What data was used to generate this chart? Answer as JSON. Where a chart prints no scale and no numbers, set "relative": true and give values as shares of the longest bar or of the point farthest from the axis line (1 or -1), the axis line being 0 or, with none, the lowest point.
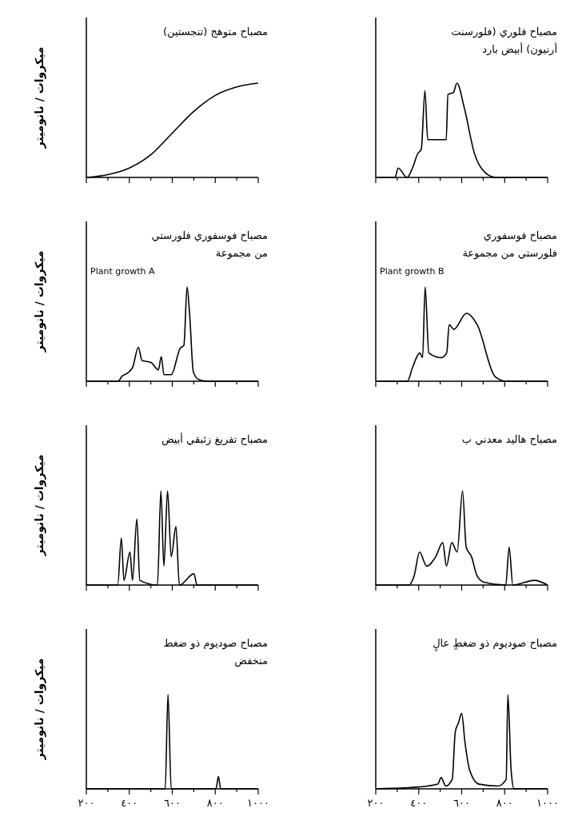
{
  "chart_data": [
    {
      "type": "line",
      "title": "مصباح متوهج (تنجستين)",
      "ylabel": "ميكروات / نانوميتر",
      "relative": true,
      "color": "#000000",
      "xlim": [
        200,
        1000
      ],
      "xticks": [
        200,
        {
          "value": 300,
          "label": null
        },
        400,
        {
          "value": 500,
          "label": null
        },
        600,
        {
          "value": 700,
          "label": null
        },
        800,
        {
          "value": 900,
          "label": null
        },
        1000
      ],
      "tick_labels": false,
      "x": [
        200,
        300,
        400,
        500,
        600,
        700,
        800,
        900,
        1000
      ],
      "values": [
        0,
        0.03,
        0.1,
        0.24,
        0.47,
        0.7,
        0.87,
        0.96,
        1
      ]
    },
    {
      "type": "line",
      "title": "مصباح فلوري (فلورسنت\nأرنيون) أبيض بارد",
      "relative": true,
      "color": "#000000",
      "xlim": [
        200,
        1000
      ],
      "xticks": [
        200,
        {
          "value": 300,
          "label": null
        },
        400,
        {
          "value": 500,
          "label": null
        },
        600,
        {
          "value": 700,
          "label": null
        },
        800,
        {
          "value": 900,
          "label": null
        },
        1000
      ],
      "tick_labels": false,
      "x": [
        200,
        290,
        304,
        346,
        371,
        395,
        412,
        429,
        442,
        528,
        536,
        561,
        578,
        611,
        660,
        710,
        760,
        1000
      ],
      "values": [
        0,
        0,
        0.1,
        0,
        0.1,
        0.25,
        0.3,
        0.92,
        0.4,
        0.4,
        0.88,
        0.9,
        1,
        0.75,
        0.25,
        0.05,
        0,
        0
      ]
    },
    {
      "type": "line",
      "title": "مصباح فوسفوري فلورستي\nمن مجموعة",
      "annotations": [
        "Plant growth A"
      ],
      "ylabel": "ميكروات / نانوميتر",
      "relative": true,
      "color": "#000000",
      "xlim": [
        200,
        1000
      ],
      "xticks": [
        200,
        {
          "value": 300,
          "label": null
        },
        400,
        {
          "value": 500,
          "label": null
        },
        600,
        {
          "value": 700,
          "label": null
        },
        800,
        {
          "value": 900,
          "label": null
        },
        1000
      ],
      "tick_labels": false,
      "x": [
        200,
        348,
        365,
        399,
        416,
        442,
        459,
        501,
        535,
        549,
        561,
        595,
        637,
        654,
        669,
        681,
        698,
        722,
        765,
        1000
      ],
      "values": [
        0,
        0,
        0.05,
        0.1,
        0.15,
        0.36,
        0.22,
        0.2,
        0.12,
        0.26,
        0.07,
        0.07,
        0.35,
        0.38,
        1,
        0.7,
        0.1,
        0.02,
        0,
        0
      ]
    },
    {
      "type": "line",
      "title": "مصباح فوسفوري\nفلورستي من مجموعة",
      "annotations": [
        "Plant growth B"
      ],
      "relative": true,
      "color": "#000000",
      "xlim": [
        200,
        1000
      ],
      "xticks": [
        200,
        {
          "value": 300,
          "label": null
        },
        400,
        {
          "value": 500,
          "label": null
        },
        600,
        {
          "value": 700,
          "label": null
        },
        800,
        {
          "value": 900,
          "label": null
        },
        1000
      ],
      "tick_labels": false,
      "x": [
        200,
        347,
        372,
        405,
        418,
        430,
        447,
        505,
        530,
        542,
        563,
        622,
        672,
        755,
        805,
        1000
      ],
      "values": [
        0,
        0,
        0.15,
        0.3,
        0.25,
        1,
        0.3,
        0.25,
        0.3,
        0.6,
        0.55,
        0.72,
        0.6,
        0.05,
        0,
        0
      ]
    },
    {
      "type": "line",
      "title": "مصباح تفريغ زئبقي أبيض",
      "ylabel": "ميكروات / نانوميتر",
      "relative": true,
      "color": "#000000",
      "xlim": [
        200,
        1000
      ],
      "xticks": [
        200,
        {
          "value": 300,
          "label": null
        },
        400,
        {
          "value": 500,
          "label": null
        },
        600,
        {
          "value": 700,
          "label": null
        },
        800,
        {
          "value": 900,
          "label": null
        },
        1000
      ],
      "tick_labels": false,
      "x": [
        200,
        346,
        363,
        375,
        403,
        415,
        435,
        449,
        531,
        547,
        561,
        578,
        595,
        617,
        633,
        701,
        715,
        1000
      ],
      "values": [
        0,
        0,
        0.5,
        0.05,
        0.35,
        0.05,
        0.7,
        0.05,
        0,
        1,
        0.2,
        1,
        0.3,
        0.62,
        0,
        0.12,
        0,
        0
      ]
    },
    {
      "type": "line",
      "title": "مصباح هاليد معدني ب",
      "relative": true,
      "color": "#000000",
      "xlim": [
        200,
        1000
      ],
      "xticks": [
        200,
        {
          "value": 300,
          "label": null
        },
        400,
        {
          "value": 500,
          "label": null
        },
        600,
        {
          "value": 700,
          "label": null
        },
        800,
        {
          "value": 900,
          "label": null
        },
        1000
      ],
      "tick_labels": false,
      "x": [
        200,
        354,
        379,
        404,
        437,
        479,
        512,
        529,
        554,
        579,
        604,
        621,
        646,
        671,
        704,
        805,
        821,
        838,
        938,
        1000
      ],
      "values": [
        0,
        0,
        0.1,
        0.35,
        0.2,
        0.3,
        0.45,
        0.2,
        0.45,
        0.35,
        1,
        0.4,
        0.3,
        0.1,
        0.03,
        0,
        0.4,
        0,
        0.05,
        0
      ]
    },
    {
      "type": "line",
      "title": "مصباح صوديوم ذو ضغط\nمنخفض",
      "ylabel": "ميكروات / نانوميتر",
      "relative": true,
      "color": "#000000",
      "xlim": [
        200,
        1000
      ],
      "xticks": [
        {
          "value": 200,
          "label": "٢٠٠"
        },
        {
          "value": 300,
          "label": null
        },
        {
          "value": 400,
          "label": "٤٠٠"
        },
        {
          "value": 500,
          "label": null
        },
        {
          "value": 600,
          "label": "٦٠٠"
        },
        {
          "value": 700,
          "label": null
        },
        {
          "value": 800,
          "label": "٨٠٠"
        },
        {
          "value": 900,
          "label": null
        },
        {
          "value": 1000,
          "label": "١٠٠٠"
        }
      ],
      "tick_labels": "x",
      "x": [
        200,
        567,
        580,
        595,
        803,
        815,
        825,
        1000
      ],
      "values": [
        0,
        0,
        1,
        0,
        0,
        0.13,
        0,
        0
      ]
    },
    {
      "type": "line",
      "title": "مصباح صوديوم ذو ضغطٍ عالٍ",
      "relative": true,
      "color": "#000000",
      "xlim": [
        200,
        1000
      ],
      "xticks": [
        {
          "value": 200,
          "label": "٢٠٠"
        },
        {
          "value": 300,
          "label": null
        },
        {
          "value": 400,
          "label": "٤٠٠"
        },
        {
          "value": 500,
          "label": null
        },
        {
          "value": 600,
          "label": "٦٠٠"
        },
        {
          "value": 700,
          "label": null
        },
        {
          "value": 800,
          "label": "٨٠٠"
        },
        {
          "value": 900,
          "label": null
        },
        {
          "value": 1000,
          "label": "١٠٠٠"
        }
      ],
      "tick_labels": "x",
      "x": [
        200,
        400,
        489,
        504,
        526,
        556,
        570,
        585,
        600,
        615,
        637,
        681,
        770,
        807,
        815,
        830,
        844,
        1000
      ],
      "values": [
        0,
        0.02,
        0.05,
        0.12,
        0.03,
        0.1,
        0.6,
        0.7,
        0.8,
        0.5,
        0.2,
        0.05,
        0.03,
        0.1,
        1,
        0.2,
        0,
        0
      ]
    }
  ]
}
